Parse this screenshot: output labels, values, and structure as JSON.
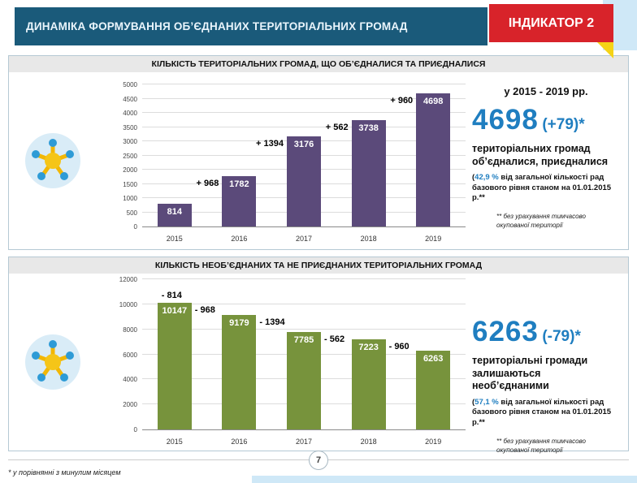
{
  "header": {
    "title": "ДИНАМІКА ФОРМУВАННЯ ОБ’ЄДНАНИХ ТЕРИТОРІАЛЬНИХ ГРОМАД",
    "badge": "ІНДИКАТОР 2"
  },
  "panels": [
    {
      "title": "КІЛЬКІСТЬ ТЕРИТОРІАЛЬНИХ ГРОМАД, ЩО ОБ’ЄДНАЛИСЯ ТА ПРИЄДНАЛИСЯ",
      "period": "у 2015 - 2019 рр.",
      "big_number": "4698",
      "big_suffix": "(+79)*",
      "description": "територіальних громад об’єдналися, приєдналися",
      "pct_open": "(",
      "pct_value": "42,9 %",
      "pct_rest": "від загальної кількості рад базового рівня станом на 01.01.2015 р.**",
      "note": "** без урахування тимчасово окупованої території"
    },
    {
      "title": "КІЛЬКІСТЬ НЕОБ’ЄДНАНИХ ТА НЕ ПРИЄДНАНИХ ТЕРИТОРІАЛЬНИХ ГРОМАД",
      "big_number": "6263",
      "big_suffix": "(-79)*",
      "description": "територіальні громади залишаються необ’єднаними",
      "pct_open": "(",
      "pct_value": "57,1 %",
      "pct_rest": "від загальної кількості рад базового рівня станом на 01.01.2015 р.**",
      "note": "** без урахування тимчасово окупованої території"
    }
  ],
  "chart_data": [
    {
      "type": "bar",
      "title": "КІЛЬКІСТЬ ТЕРИТОРІАЛЬНИХ ГРОМАД, ЩО ОБ’ЄДНАЛИСЯ ТА ПРИЄДНАЛИСЯ",
      "categories": [
        "2015",
        "2016",
        "2017",
        "2018",
        "2019"
      ],
      "values": [
        814,
        1782,
        3176,
        3738,
        4698
      ],
      "bar_color": "#5b4a7a",
      "value_label_color": "#ffffff",
      "xlabel": "",
      "ylabel": "",
      "ylim": [
        0,
        5000
      ],
      "ystep": 500,
      "grid": true,
      "legend": false,
      "annotations": [
        {
          "text": "+ 968",
          "bar": 1,
          "pos": "top-left-out"
        },
        {
          "text": "+ 1394",
          "bar": 2,
          "pos": "top-left-out"
        },
        {
          "text": "+ 562",
          "bar": 3,
          "pos": "top-left-out"
        },
        {
          "text": "+ 960",
          "bar": 4,
          "pos": "top-left-out"
        }
      ]
    },
    {
      "type": "bar",
      "title": "КІЛЬКІСТЬ НЕОБ’ЄДНАНИХ ТА НЕ ПРИЄДНАНИХ ТЕРИТОРІАЛЬНИХ ГРОМАД",
      "categories": [
        "2015",
        "2016",
        "2017",
        "2018",
        "2019"
      ],
      "values": [
        10147,
        9179,
        7785,
        7223,
        6263
      ],
      "bar_color": "#77933c",
      "value_label_color": "#ffffff",
      "xlabel": "",
      "ylabel": "",
      "ylim": [
        0,
        12000
      ],
      "ystep": 2000,
      "grid": true,
      "legend": false,
      "annotations": [
        {
          "text": "- 814",
          "bar": 0,
          "pos": "above"
        },
        {
          "text": "- 968",
          "bar": 0,
          "pos": "top-right-out"
        },
        {
          "text": "- 1394",
          "bar": 1,
          "pos": "top-right-out"
        },
        {
          "text": "- 562",
          "bar": 2,
          "pos": "top-right-out"
        },
        {
          "text": "- 960",
          "bar": 3,
          "pos": "top-right-out"
        }
      ]
    }
  ],
  "footer": {
    "footnote": "* у порівнянні з минулим місяцем",
    "page_number": "7"
  },
  "colors": {
    "header_bg": "#1a5a7a",
    "badge_bg": "#d8232a",
    "badge_fold": "#f5d316",
    "accent_blue": "#1f7ec0",
    "purple_bar": "#5b4a7a",
    "green_bar": "#77933c",
    "light_blue": "#cfe8f7"
  }
}
